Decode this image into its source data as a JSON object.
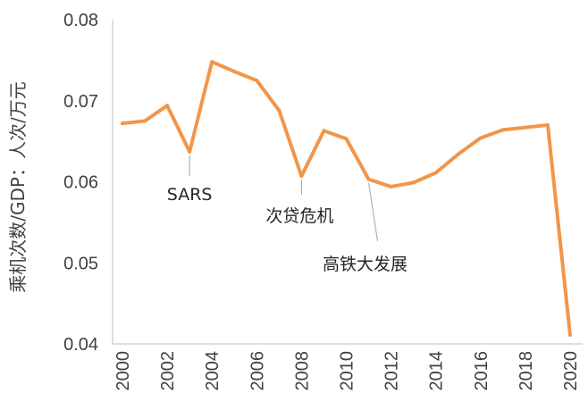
{
  "chart_data": {
    "type": "line",
    "ylabel": "乘机次数/GDP：人次/万元",
    "xlabel": "",
    "ylim": [
      0.04,
      0.08
    ],
    "xlim": [
      2000,
      2020
    ],
    "grid": false,
    "y_ticks": [
      "0.04",
      "0.05",
      "0.06",
      "0.07",
      "0.08"
    ],
    "x_ticks": [
      "2000",
      "2002",
      "2004",
      "2006",
      "2008",
      "2010",
      "2012",
      "2014",
      "2016",
      "2018",
      "2020"
    ],
    "series_color": "#F0964A",
    "x": [
      2000,
      2001,
      2002,
      2003,
      2004,
      2005,
      2006,
      2007,
      2008,
      2009,
      2010,
      2011,
      2012,
      2013,
      2014,
      2015,
      2016,
      2017,
      2018,
      2019,
      2020
    ],
    "y": [
      0.0672,
      0.0675,
      0.0694,
      0.0637,
      0.0748,
      0.0736,
      0.0725,
      0.0688,
      0.0607,
      0.0663,
      0.0653,
      0.0603,
      0.0594,
      0.0599,
      0.0611,
      0.0634,
      0.0654,
      0.0664,
      0.0667,
      0.067,
      0.0411
    ],
    "annotations": [
      {
        "text": "SARS",
        "x": 2003
      },
      {
        "text": "次贷危机",
        "x": 2008
      },
      {
        "text": "高铁大发展",
        "x": 2011
      }
    ]
  }
}
